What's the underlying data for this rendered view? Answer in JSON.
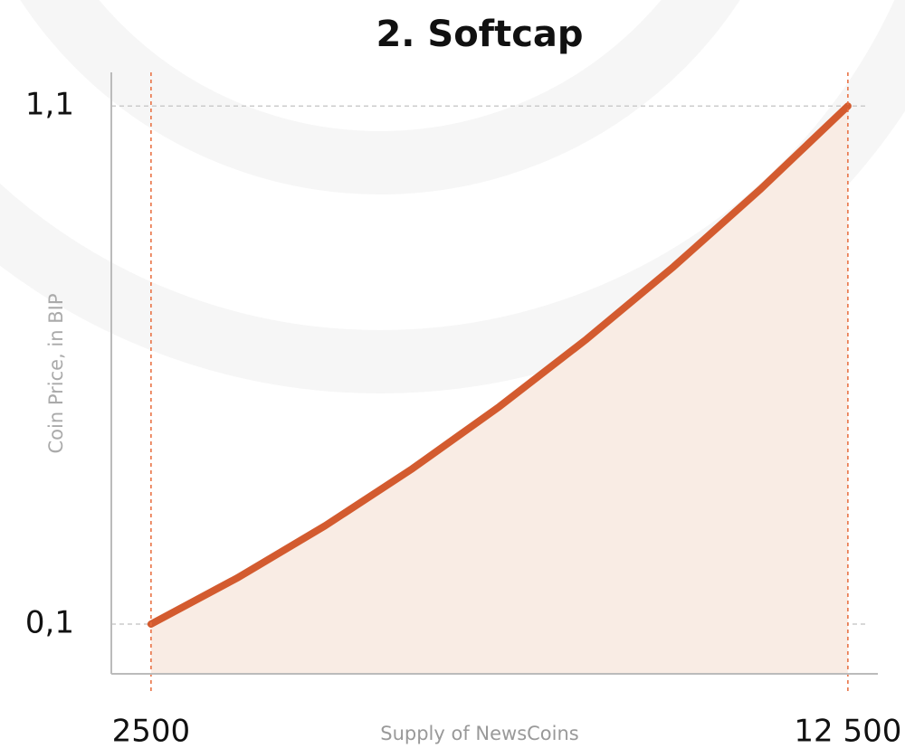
{
  "chart_data": {
    "type": "line",
    "title": "2. Softcap",
    "x_label": "Supply of NewsCoins",
    "y_label": "Coin Price, in BIP",
    "x": [
      2500,
      3750,
      5000,
      6250,
      7500,
      8750,
      10000,
      11250,
      12500
    ],
    "series": [
      {
        "name": "Softcap",
        "color": "#d35b2f",
        "fill": "#f9ece4",
        "values": [
          0.1,
          0.19,
          0.29,
          0.4,
          0.52,
          0.65,
          0.79,
          0.94,
          1.1
        ]
      }
    ],
    "xlim": [
      1930,
      12930
    ],
    "ylim": [
      0.004,
      1.165
    ],
    "xticks": [
      2500,
      {
        "value": 12500,
        "label": "12 500"
      }
    ],
    "yticks": [
      {
        "value": 0.1,
        "label": "0,1"
      },
      {
        "value": 1.1,
        "label": "1,1"
      }
    ],
    "grid": true
  }
}
